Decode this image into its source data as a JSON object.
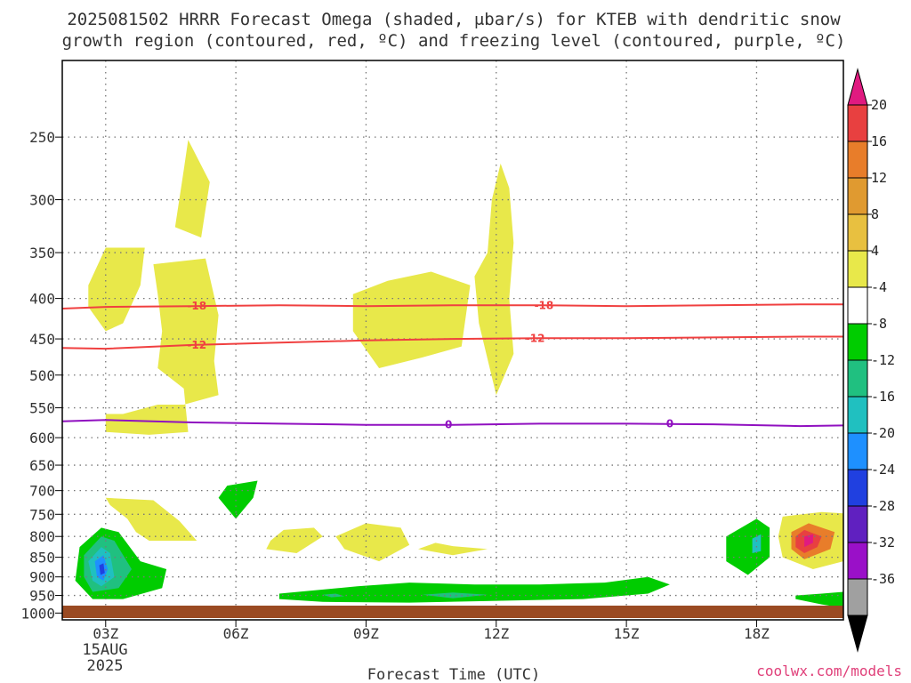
{
  "header": {
    "title_line1": "2025081502 HRRR Forecast Omega (shaded, μbar/s) for KTEB with dendritic snow",
    "title_line2": "growth region (contoured, red, ºC) and freezing level (contoured, purple, ºC)"
  },
  "credit": "coolwx.com/models",
  "chart_data": {
    "type": "heatmap",
    "xlabel": "Forecast Time (UTC)",
    "x_ticks": [
      "03Z",
      "06Z",
      "09Z",
      "12Z",
      "15Z",
      "18Z"
    ],
    "x_tick_hours": [
      3,
      6,
      9,
      12,
      15,
      18
    ],
    "x_range_hours": [
      2,
      20
    ],
    "date_label_line1": "15AUG",
    "date_label_line2": "2025",
    "y_ticks": [
      250,
      300,
      350,
      400,
      450,
      500,
      550,
      600,
      650,
      700,
      750,
      800,
      850,
      900,
      950,
      1000
    ],
    "y_range_mb": [
      200,
      1020
    ],
    "y_scale": "log",
    "grid": true,
    "colorbar": {
      "labels": [
        "20",
        "16",
        "12",
        "8",
        "4",
        "-4",
        "-8",
        "-12",
        "-16",
        "-20",
        "-24",
        "-28",
        "-32",
        "-36"
      ],
      "colors": [
        "#e8e84a",
        "#e8c040",
        "#e09a30",
        "#e87d2a",
        "#e84040",
        "#e01a80",
        "#ffffff",
        "#00cc00",
        "#20c080",
        "#20c0c0",
        "#1e90ff",
        "#2040e0",
        "#6020c0",
        "#9a10c8",
        "#a0a0a0",
        "#000000"
      ]
    },
    "contours": [
      {
        "name": "dendritic snow growth",
        "color": "#f04040",
        "level": "-18",
        "label_hours": [
          5.1,
          13.1
        ],
        "points": [
          [
            2,
            412
          ],
          [
            3,
            410
          ],
          [
            5,
            409
          ],
          [
            7,
            408
          ],
          [
            9,
            409
          ],
          [
            11,
            408
          ],
          [
            13,
            408
          ],
          [
            15,
            409
          ],
          [
            17,
            408
          ],
          [
            19,
            407
          ],
          [
            20,
            407
          ]
        ]
      },
      {
        "name": "dendritic snow growth",
        "color": "#f04040",
        "level": "-12",
        "label_hours": [
          5.1,
          12.9
        ],
        "points": [
          [
            2,
            462
          ],
          [
            3,
            463
          ],
          [
            5,
            458
          ],
          [
            7,
            455
          ],
          [
            9,
            452
          ],
          [
            11,
            450
          ],
          [
            13,
            449
          ],
          [
            15,
            449
          ],
          [
            17,
            448
          ],
          [
            19,
            447
          ],
          [
            20,
            447
          ]
        ]
      },
      {
        "name": "freezing level",
        "color": "#9010c0",
        "level": "0",
        "label_hours": [
          10.9,
          16.0
        ],
        "points": [
          [
            2,
            572
          ],
          [
            3,
            570
          ],
          [
            5,
            574
          ],
          [
            7,
            576
          ],
          [
            9,
            578
          ],
          [
            11,
            578
          ],
          [
            13,
            576
          ],
          [
            15,
            576
          ],
          [
            17,
            577
          ],
          [
            19,
            580
          ],
          [
            20,
            579
          ]
        ]
      }
    ],
    "omega_regions": [
      {
        "color": "#e8e84a",
        "points": [
          [
            4.9,
            252
          ],
          [
            5.4,
            285
          ],
          [
            5.2,
            335
          ],
          [
            4.6,
            325
          ],
          [
            4.8,
            275
          ]
        ]
      },
      {
        "color": "#e8e84a",
        "points": [
          [
            2.6,
            385
          ],
          [
            3,
            345
          ],
          [
            3.9,
            345
          ],
          [
            3.8,
            385
          ],
          [
            3.4,
            430
          ],
          [
            3,
            440
          ],
          [
            2.6,
            410
          ]
        ]
      },
      {
        "color": "#e8e84a",
        "points": [
          [
            4.1,
            362
          ],
          [
            5.3,
            356
          ],
          [
            5.6,
            420
          ],
          [
            5.5,
            480
          ],
          [
            5.6,
            530
          ],
          [
            4.8,
            545
          ],
          [
            4.2,
            545
          ],
          [
            3.4,
            560
          ],
          [
            3,
            560
          ],
          [
            3,
            590
          ],
          [
            4,
            595
          ],
          [
            4.9,
            590
          ],
          [
            4.8,
            520
          ],
          [
            4.2,
            490
          ],
          [
            4.3,
            440
          ],
          [
            4.2,
            395
          ]
        ]
      },
      {
        "color": "#e8e84a",
        "points": [
          [
            8.7,
            395
          ],
          [
            9.5,
            380
          ],
          [
            10.5,
            370
          ],
          [
            11.4,
            385
          ],
          [
            11.2,
            460
          ],
          [
            10.3,
            475
          ],
          [
            9.3,
            490
          ],
          [
            8.7,
            440
          ]
        ]
      },
      {
        "color": "#e8e84a",
        "points": [
          [
            12.1,
            270
          ],
          [
            12.3,
            290
          ],
          [
            12.4,
            340
          ],
          [
            12.3,
            400
          ],
          [
            12.4,
            470
          ],
          [
            12,
            530
          ],
          [
            11.6,
            430
          ],
          [
            11.5,
            375
          ],
          [
            11.8,
            350
          ],
          [
            11.9,
            300
          ]
        ]
      },
      {
        "color": "#e8e84a",
        "points": [
          [
            3,
            715
          ],
          [
            4.1,
            720
          ],
          [
            4.7,
            765
          ],
          [
            5.1,
            810
          ],
          [
            4,
            810
          ],
          [
            3.7,
            790
          ],
          [
            3.5,
            760
          ],
          [
            3.1,
            730
          ]
        ]
      },
      {
        "color": "#e8e84a",
        "points": [
          [
            7.1,
            785
          ],
          [
            7.8,
            780
          ],
          [
            8,
            800
          ],
          [
            7.4,
            840
          ],
          [
            6.7,
            830
          ],
          [
            6.8,
            810
          ]
        ]
      },
      {
        "color": "#e8e84a",
        "points": [
          [
            8.3,
            800
          ],
          [
            9,
            770
          ],
          [
            9.8,
            780
          ],
          [
            10,
            820
          ],
          [
            9.3,
            860
          ],
          [
            8.5,
            830
          ]
        ]
      },
      {
        "color": "#e8e84a",
        "points": [
          [
            10.6,
            815
          ],
          [
            11,
            823
          ],
          [
            11.8,
            830
          ],
          [
            11,
            845
          ],
          [
            10.2,
            830
          ]
        ]
      },
      {
        "color": "#e8e84a",
        "points": [
          [
            18.6,
            755
          ],
          [
            19.5,
            745
          ],
          [
            20,
            748
          ],
          [
            20,
            860
          ],
          [
            19.3,
            880
          ],
          [
            18.6,
            850
          ],
          [
            18.5,
            800
          ]
        ]
      },
      {
        "color": "#e87d2a",
        "points": [
          [
            18.8,
            790
          ],
          [
            19.2,
            770
          ],
          [
            19.8,
            790
          ],
          [
            19.7,
            830
          ],
          [
            19.1,
            855
          ],
          [
            18.8,
            830
          ]
        ]
      },
      {
        "color": "#e84040",
        "points": [
          [
            18.9,
            800
          ],
          [
            19.1,
            785
          ],
          [
            19.5,
            800
          ],
          [
            19.4,
            825
          ],
          [
            19.1,
            840
          ],
          [
            18.9,
            825
          ]
        ]
      },
      {
        "color": "#e01a80",
        "points": [
          [
            19.1,
            800
          ],
          [
            19.3,
            795
          ],
          [
            19.3,
            815
          ],
          [
            19.1,
            825
          ]
        ]
      },
      {
        "color": "#00cc00",
        "points": [
          [
            5.8,
            690
          ],
          [
            6.5,
            680
          ],
          [
            6.4,
            715
          ],
          [
            6,
            760
          ],
          [
            5.6,
            715
          ]
        ]
      },
      {
        "color": "#00cc00",
        "points": [
          [
            2.4,
            825
          ],
          [
            2.9,
            780
          ],
          [
            3.3,
            790
          ],
          [
            3.8,
            860
          ],
          [
            4.4,
            880
          ],
          [
            4.3,
            930
          ],
          [
            3.4,
            960
          ],
          [
            2.7,
            960
          ],
          [
            2.3,
            910
          ]
        ]
      },
      {
        "color": "#20c080",
        "points": [
          [
            2.5,
            845
          ],
          [
            2.9,
            800
          ],
          [
            3.2,
            810
          ],
          [
            3.6,
            880
          ],
          [
            3.3,
            930
          ],
          [
            2.7,
            940
          ],
          [
            2.5,
            900
          ]
        ]
      },
      {
        "color": "#20c0c0",
        "points": [
          [
            2.6,
            860
          ],
          [
            2.9,
            825
          ],
          [
            3.1,
            840
          ],
          [
            3.2,
            900
          ],
          [
            2.9,
            925
          ],
          [
            2.7,
            910
          ]
        ]
      },
      {
        "color": "#1e90ff",
        "points": [
          [
            2.75,
            860
          ],
          [
            2.95,
            845
          ],
          [
            3.05,
            880
          ],
          [
            2.95,
            910
          ],
          [
            2.8,
            900
          ]
        ]
      },
      {
        "color": "#2040e0",
        "points": [
          [
            2.85,
            870
          ],
          [
            2.95,
            865
          ],
          [
            2.98,
            890
          ],
          [
            2.88,
            895
          ]
        ]
      },
      {
        "color": "#00cc00",
        "points": [
          [
            7,
            945
          ],
          [
            8.8,
            925
          ],
          [
            10,
            915
          ],
          [
            11.5,
            920
          ],
          [
            13,
            920
          ],
          [
            14.5,
            915
          ],
          [
            15.5,
            900
          ],
          [
            16,
            920
          ],
          [
            15.5,
            945
          ],
          [
            14,
            960
          ],
          [
            12,
            965
          ],
          [
            10,
            970
          ],
          [
            8,
            968
          ],
          [
            7,
            960
          ]
        ]
      },
      {
        "color": "#20c080",
        "points": [
          [
            10.3,
            948
          ],
          [
            11,
            942
          ],
          [
            11.8,
            948
          ],
          [
            11,
            958
          ]
        ]
      },
      {
        "color": "#20c080",
        "points": [
          [
            8,
            948
          ],
          [
            8.3,
            945
          ],
          [
            8.5,
            952
          ],
          [
            8.2,
            955
          ]
        ]
      },
      {
        "color": "#00cc00",
        "points": [
          [
            17.3,
            800
          ],
          [
            18,
            760
          ],
          [
            18.3,
            780
          ],
          [
            18.3,
            850
          ],
          [
            17.8,
            895
          ],
          [
            17.3,
            860
          ]
        ]
      },
      {
        "color": "#20c0c0",
        "points": [
          [
            17.9,
            805
          ],
          [
            18.1,
            795
          ],
          [
            18.1,
            835
          ],
          [
            17.9,
            840
          ]
        ]
      },
      {
        "color": "#00cc00",
        "points": [
          [
            18.9,
            950
          ],
          [
            19.5,
            945
          ],
          [
            20,
            940
          ],
          [
            20,
            985
          ],
          [
            19.5,
            975
          ],
          [
            18.9,
            960
          ]
        ]
      }
    ]
  }
}
